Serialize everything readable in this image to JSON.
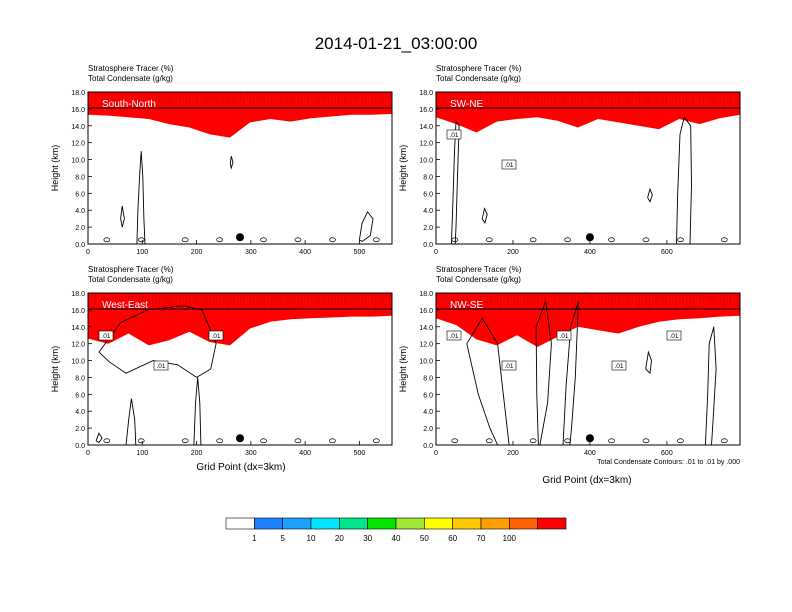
{
  "figure": {
    "title": "2014-01-21_03:00:00",
    "xlabel": "Grid Point (dx=3km)",
    "ylabel": "Height (km)",
    "contour_note": "Total Condensate Contours: .01 to .01 by .000"
  },
  "legend": {
    "levels": [
      "1",
      "5",
      "10",
      "20",
      "30",
      "40",
      "50",
      "60",
      "70",
      "100"
    ],
    "colors": [
      "#ffffff",
      "#1e82ff",
      "#1ea0ff",
      "#00e6ff",
      "#00e68c",
      "#00e600",
      "#a0e632",
      "#ffff00",
      "#ffc800",
      "#ffa000",
      "#ff6000",
      "#ff0000"
    ]
  },
  "chart_data": [
    {
      "type": "heatmap",
      "panel_label": "South-North",
      "subtitle_left": "Stratosphere Tracer   (%)",
      "subtitle_left2": "Total Condensate   (g/kg)",
      "xlabel": "",
      "ylabel": "Height (km)",
      "xlim": [
        0,
        560
      ],
      "ylim": [
        0,
        18
      ],
      "xticks": [
        "0",
        "100",
        "200",
        "300",
        "400",
        "500"
      ],
      "yticks": [
        "0.0",
        "2.0",
        "4.0",
        "6.0",
        "8.0",
        "10.0",
        "12.0",
        "14.0",
        "16.0",
        "18.0"
      ],
      "tracer_top_km": [
        15.3,
        15.2,
        15.0,
        14.8,
        14.2,
        13.8,
        13.0,
        12.6,
        14.4,
        14.8,
        14.5,
        14.9,
        15.1,
        15.3,
        15.3,
        15.4
      ],
      "marker_x": 280,
      "contour_labels": [],
      "cond_contours": [
        {
          "name": "cloud-column-100",
          "pts": [
            [
              90,
              0
            ],
            [
              92,
              4
            ],
            [
              95,
              8
            ],
            [
              98,
              11
            ],
            [
              101,
              8
            ],
            [
              103,
              3
            ],
            [
              105,
              0
            ]
          ]
        },
        {
          "name": "cloud-column-70",
          "pts": [
            [
              60,
              3
            ],
            [
              63,
              4.5
            ],
            [
              67,
              3
            ],
            [
              63,
              2
            ],
            [
              60,
              3
            ]
          ]
        },
        {
          "name": "cloud-column-500",
          "pts": [
            [
              500,
              0.5
            ],
            [
              505,
              2.5
            ],
            [
              515,
              3.8
            ],
            [
              525,
              3
            ],
            [
              520,
              1
            ],
            [
              505,
              0.3
            ],
            [
              500,
              0.5
            ]
          ]
        },
        {
          "name": "cloud-small-265",
          "pts": [
            [
              262,
              9.5
            ],
            [
              264,
              10.4
            ],
            [
              267,
              9.7
            ],
            [
              264,
              9.0
            ],
            [
              262,
              9.5
            ]
          ]
        }
      ]
    },
    {
      "type": "heatmap",
      "panel_label": "SW-NE",
      "subtitle_left": "Stratosphere Tracer   (%)",
      "subtitle_left2": "Total Condensate   (g/kg)",
      "xlabel": "",
      "ylabel": "Height (km)",
      "xlim": [
        0,
        790
      ],
      "ylim": [
        0,
        18
      ],
      "xticks": [
        "0",
        "200",
        "400",
        "600"
      ],
      "yticks": [
        "0.0",
        "2.0",
        "4.0",
        "6.0",
        "8.0",
        "10.0",
        "12.0",
        "14.0",
        "16.0",
        "18.0"
      ],
      "tracer_top_km": [
        15.0,
        14.2,
        13.2,
        14.5,
        14.8,
        15.0,
        14.6,
        13.8,
        14.8,
        14.4,
        14.0,
        13.6,
        14.8,
        14.2,
        14.9,
        15.3
      ],
      "marker_x": 400,
      "contour_labels": [
        ".01",
        ".01"
      ],
      "cond_contours": [
        {
          "name": "cloud-column-40",
          "pts": [
            [
              40,
              0
            ],
            [
              44,
              5
            ],
            [
              48,
              11
            ],
            [
              52,
              14.5
            ],
            [
              60,
              14
            ],
            [
              56,
              8
            ],
            [
              52,
              2
            ],
            [
              50,
              0
            ]
          ]
        },
        {
          "name": "cloud-column-640",
          "pts": [
            [
              625,
              0
            ],
            [
              628,
              6
            ],
            [
              634,
              13
            ],
            [
              645,
              15
            ],
            [
              662,
              14
            ],
            [
              664,
              7
            ],
            [
              660,
              0
            ]
          ]
        },
        {
          "name": "cloud-small-560",
          "pts": [
            [
              550,
              5.5
            ],
            [
              556,
              6.5
            ],
            [
              562,
              5.8
            ],
            [
              556,
              5.0
            ],
            [
              550,
              5.5
            ]
          ]
        },
        {
          "name": "cloud-small-130",
          "pts": [
            [
              120,
              3
            ],
            [
              126,
              4.2
            ],
            [
              133,
              3.5
            ],
            [
              127,
              2.5
            ],
            [
              120,
              3
            ]
          ]
        }
      ]
    },
    {
      "type": "heatmap",
      "panel_label": "West-East",
      "subtitle_left": "Stratosphere Tracer   (%)",
      "subtitle_left2": "Total Condensate   (g/kg)",
      "xlabel": "Grid Point (dx=3km)",
      "ylabel": "Height (km)",
      "xlim": [
        0,
        560
      ],
      "ylim": [
        0,
        18
      ],
      "xticks": [
        "0",
        "100",
        "200",
        "300",
        "400",
        "500"
      ],
      "yticks": [
        "0.0",
        "2.0",
        "4.0",
        "6.0",
        "8.0",
        "10.0",
        "12.0",
        "14.0",
        "16.0",
        "18.0"
      ],
      "tracer_top_km": [
        12.6,
        12.0,
        13.2,
        11.8,
        12.4,
        13.4,
        12.2,
        11.8,
        13.8,
        14.6,
        14.9,
        15.0,
        15.1,
        15.2,
        15.2,
        15.3
      ],
      "marker_x": 280,
      "contour_labels": [
        ".01",
        ".01",
        ".01"
      ],
      "cond_contours": [
        {
          "name": "cloud-column-200",
          "pts": [
            [
              195,
              0
            ],
            [
              198,
              5
            ],
            [
              202,
              8
            ],
            [
              206,
              5
            ],
            [
              208,
              0
            ]
          ]
        },
        {
          "name": "cloud-outline-main",
          "pts": [
            [
              20,
              11
            ],
            [
              60,
              14.5
            ],
            [
              110,
              16
            ],
            [
              175,
              16.5
            ],
            [
              210,
              16
            ],
            [
              236,
              12
            ],
            [
              226,
              9
            ],
            [
              200,
              8
            ],
            [
              165,
              9.5
            ],
            [
              120,
              10
            ],
            [
              70,
              8.5
            ],
            [
              40,
              9.8
            ],
            [
              20,
              11
            ]
          ]
        },
        {
          "name": "cloud-column-80",
          "pts": [
            [
              70,
              0
            ],
            [
              75,
              3
            ],
            [
              80,
              5.5
            ],
            [
              86,
              3
            ],
            [
              88,
              0
            ]
          ]
        },
        {
          "name": "cloud-small-20",
          "pts": [
            [
              15,
              0.5
            ],
            [
              20,
              1.4
            ],
            [
              26,
              0.8
            ],
            [
              20,
              0.3
            ],
            [
              15,
              0.5
            ]
          ]
        }
      ]
    },
    {
      "type": "heatmap",
      "panel_label": "NW-SE",
      "subtitle_left": "Stratosphere Tracer   (%)",
      "subtitle_left2": "Total Condensate   (g/kg)",
      "xlabel": "Grid Point (dx=3km)",
      "ylabel": "Height (km)",
      "xlim": [
        0,
        790
      ],
      "ylim": [
        0,
        18
      ],
      "xticks": [
        "0",
        "200",
        "400",
        "600"
      ],
      "yticks": [
        "0.0",
        "2.0",
        "4.0",
        "6.0",
        "8.0",
        "10.0",
        "12.0",
        "14.0",
        "16.0",
        "18.0"
      ],
      "tracer_top_km": [
        15.0,
        14.2,
        12.5,
        11.8,
        13.0,
        11.6,
        12.8,
        14.0,
        13.6,
        13.2,
        14.0,
        14.6,
        14.9,
        15.0,
        15.2,
        15.3
      ],
      "marker_x": 400,
      "contour_labels": [
        ".01",
        ".01",
        ".01",
        ".01",
        ".01"
      ],
      "cond_contours": [
        {
          "name": "cloud-column-150",
          "pts": [
            [
              80,
              12
            ],
            [
              110,
              6
            ],
            [
              140,
              2
            ],
            [
              160,
              0
            ],
            [
              190,
              0
            ],
            [
              175,
              6
            ],
            [
              160,
              12
            ],
            [
              120,
              15
            ],
            [
              80,
              12
            ]
          ]
        },
        {
          "name": "cloud-column-300",
          "pts": [
            [
              270,
              0
            ],
            [
              290,
              5
            ],
            [
              300,
              12
            ],
            [
              285,
              17
            ],
            [
              260,
              14
            ],
            [
              262,
              6
            ],
            [
              266,
              0
            ]
          ]
        },
        {
          "name": "cloud-column-330",
          "pts": [
            [
              330,
              0
            ],
            [
              338,
              7
            ],
            [
              350,
              14
            ],
            [
              370,
              17
            ],
            [
              362,
              8
            ],
            [
              352,
              2
            ],
            [
              348,
              0
            ]
          ]
        },
        {
          "name": "cloud-column-700",
          "pts": [
            [
              700,
              0
            ],
            [
              706,
              6
            ],
            [
              710,
              12
            ],
            [
              722,
              14
            ],
            [
              728,
              9
            ],
            [
              720,
              3
            ],
            [
              716,
              0
            ]
          ]
        },
        {
          "name": "cloud-small-560",
          "pts": [
            [
              545,
              9
            ],
            [
              552,
              11
            ],
            [
              560,
              10
            ],
            [
              556,
              8.5
            ],
            [
              545,
              9
            ]
          ]
        }
      ]
    }
  ]
}
